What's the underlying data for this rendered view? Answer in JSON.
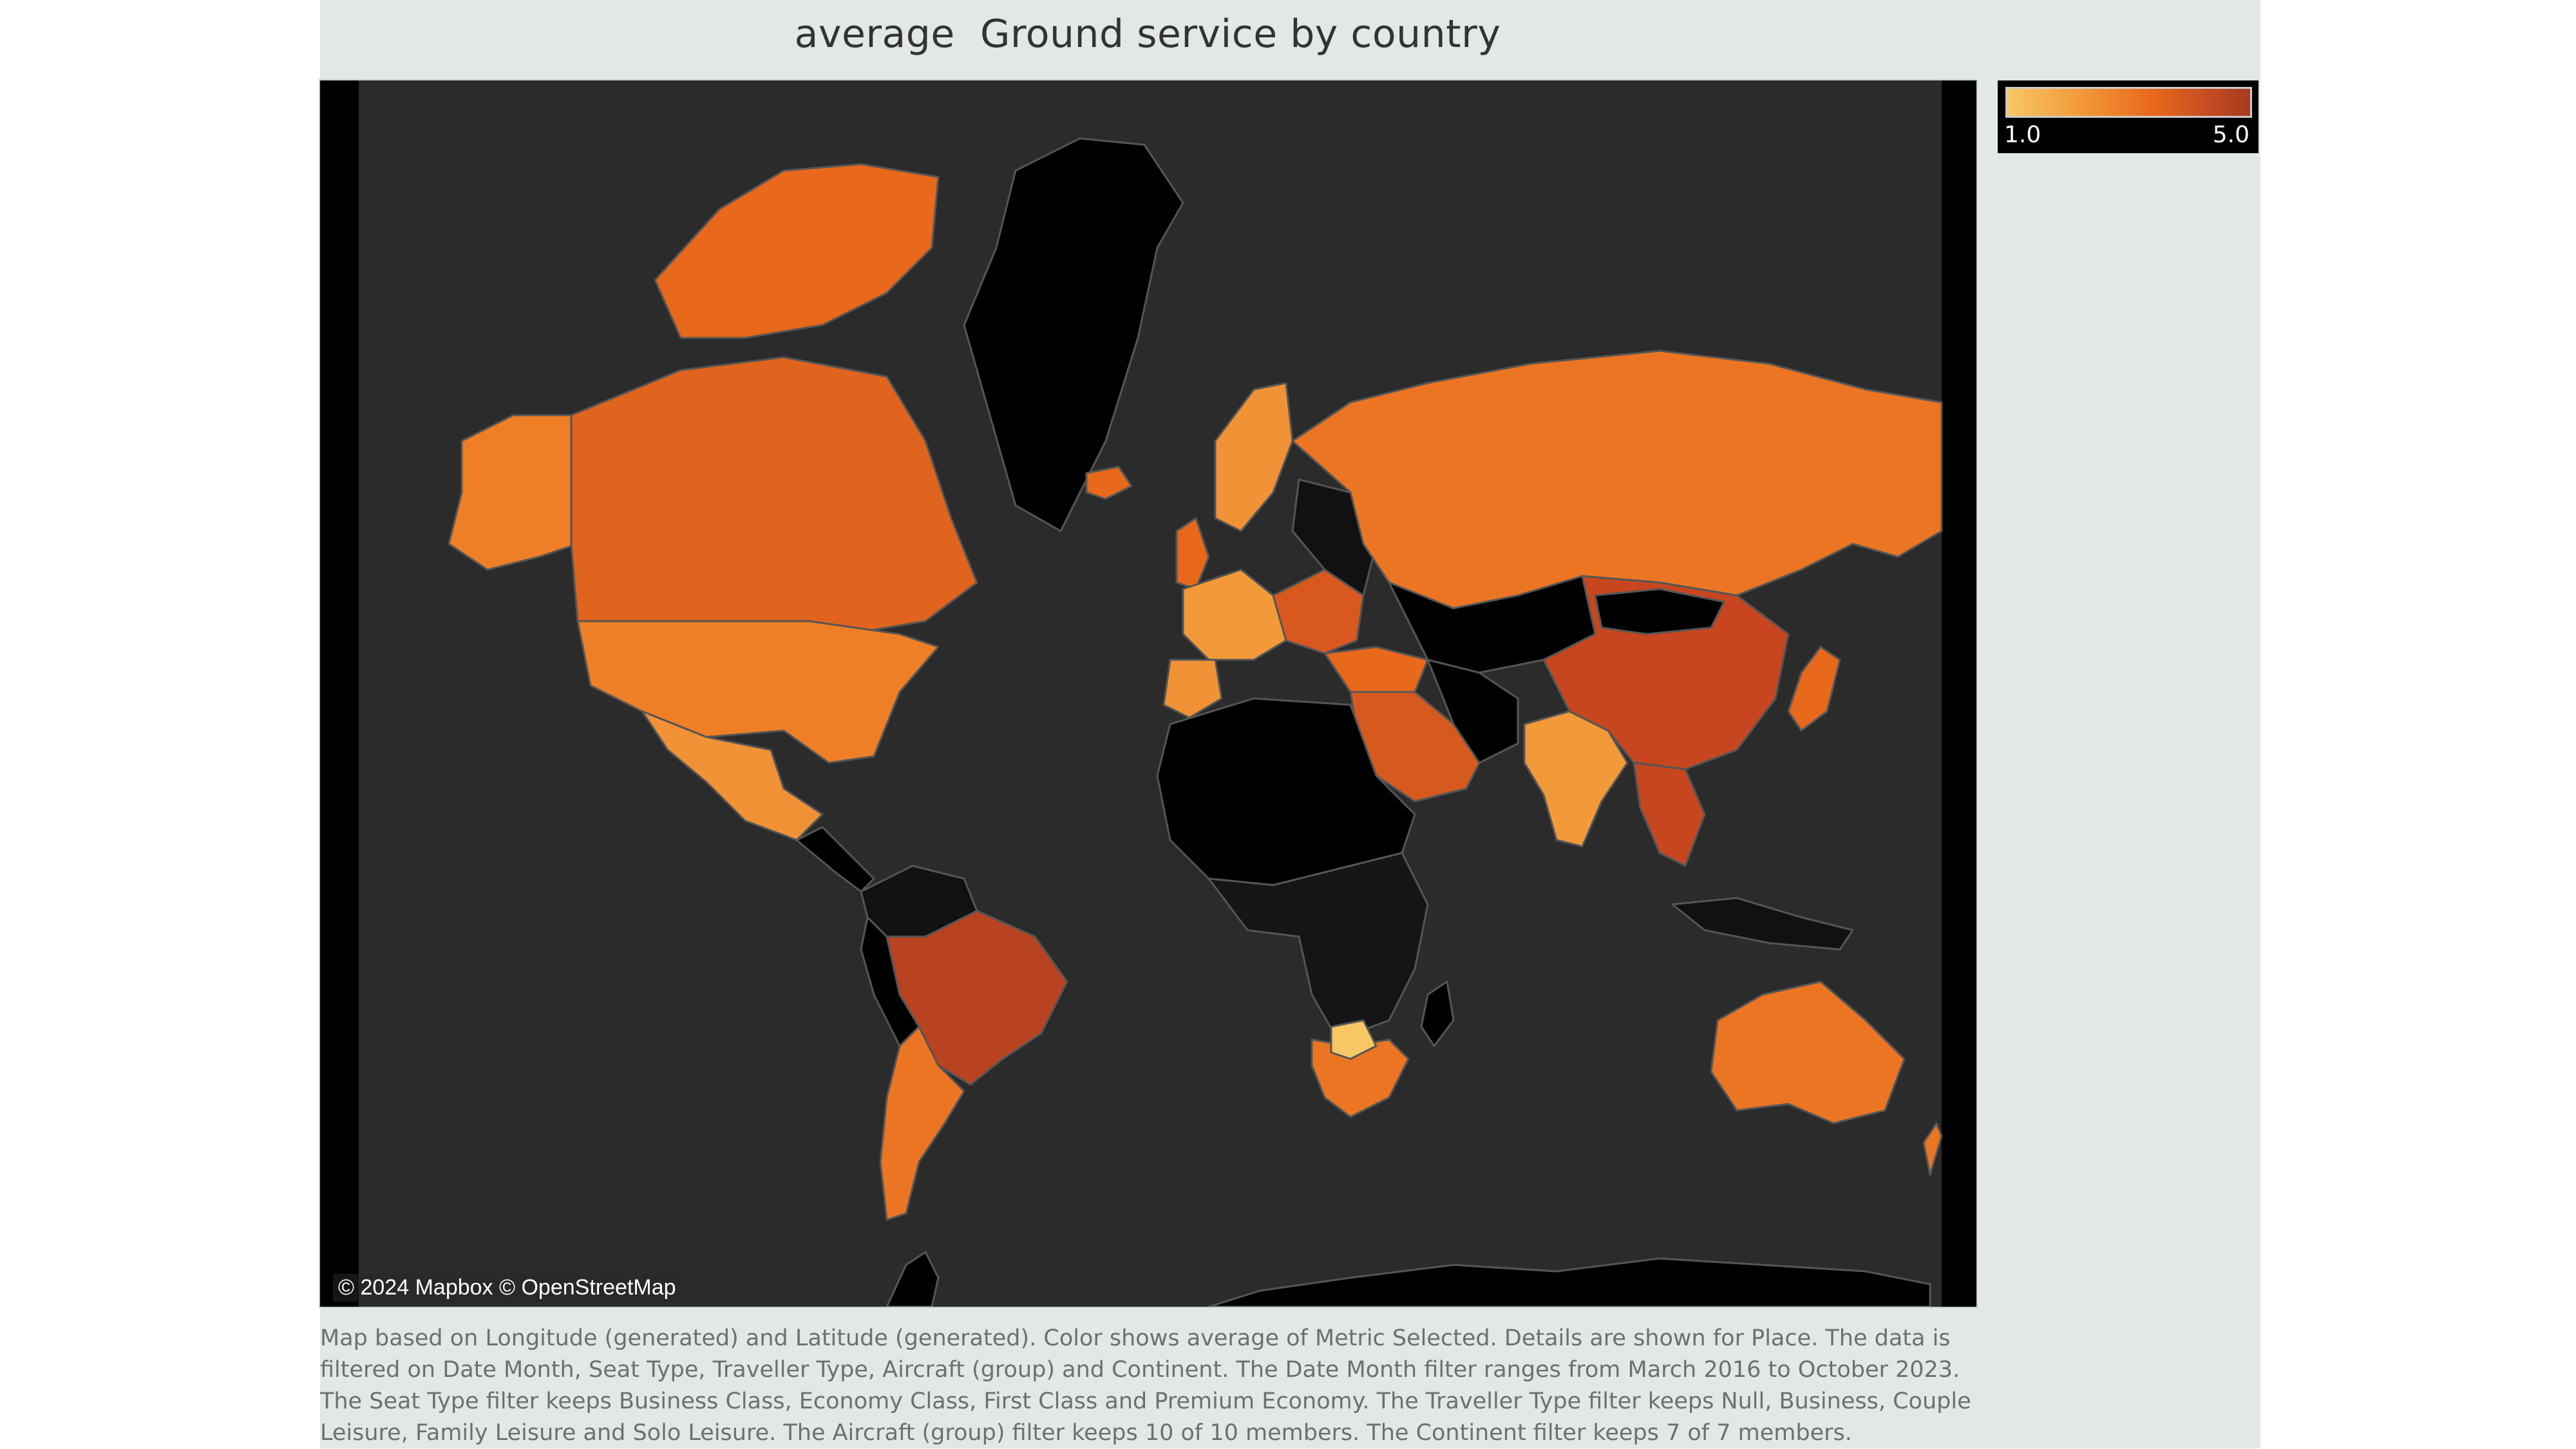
{
  "title": "average  Ground service by country",
  "map": {
    "attribution": "© 2024 Mapbox © OpenStreetMap",
    "background_color": "#2b2b2b",
    "no_data_color": "#000000",
    "border_color": "#555555",
    "icons": [
      "world-map"
    ]
  },
  "legend": {
    "min_label": "1.0",
    "max_label": "5.0",
    "color_min": "#f7c766",
    "color_max": "#a63a20"
  },
  "caption": "Map based on Longitude (generated) and Latitude (generated).  Color shows average of Metric Selected.  Details are shown for Place. The data is filtered on Date Month, Seat Type, Traveller Type, Aircraft (group) and Continent. The Date Month filter ranges from March 2016 to October 2023. The Seat Type filter keeps Business Class, Economy Class, First Class and Premium Economy. The Traveller Type filter keeps Null, Business, Couple Leisure, Family Leisure and Solo Leisure. The Aircraft (group) filter keeps 10 of 10 members. The Continent filter keeps 7 of 7 members.",
  "colors": {
    "dashboard_bg": "#e1e8e7",
    "title_color": "#333333",
    "caption_color": "#6f6f6f"
  }
}
